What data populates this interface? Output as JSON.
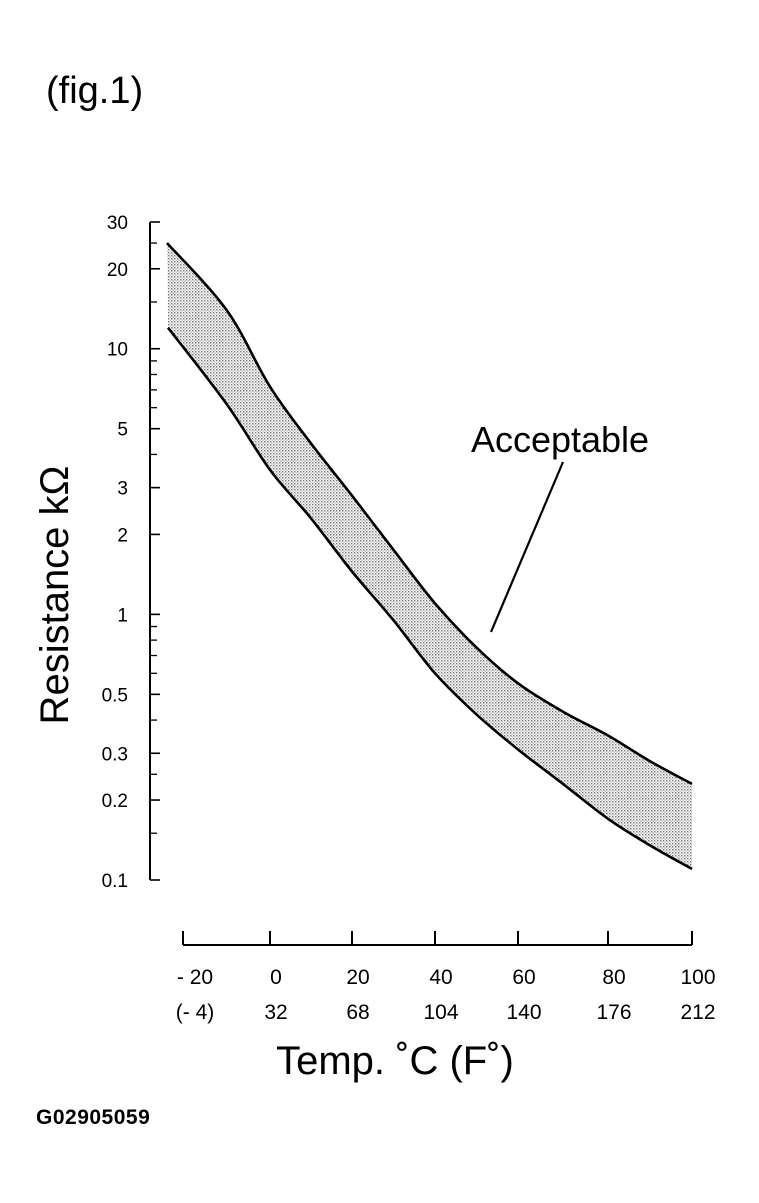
{
  "figure_label": "(fig.1)",
  "image_code": "G02905059",
  "chart_data": {
    "type": "area",
    "title": "",
    "ylabel": "Resistance kΩ",
    "xlabel": "Temp. ˚C (F˚)",
    "yscale": "log",
    "ylim": [
      0.1,
      30
    ],
    "xlim": [
      -20,
      100
    ],
    "y_tick_labels": [
      "30",
      "20",
      "10",
      "5",
      "3",
      "2",
      "1",
      "0.5",
      "0.3",
      "0.2",
      "0.1"
    ],
    "y_tick_values": [
      30,
      20,
      10,
      5,
      3,
      2,
      1,
      0.5,
      0.3,
      0.2,
      0.1
    ],
    "y_minor_ticks": [
      25,
      15,
      9,
      8,
      7,
      6,
      4,
      0.9,
      0.8,
      0.7,
      0.6,
      0.4,
      0.25,
      0.15
    ],
    "x_ticks": [
      {
        "value": -20,
        "c": "- 20",
        "f": "(- 4)"
      },
      {
        "value": 0,
        "c": "0",
        "f": "32"
      },
      {
        "value": 20,
        "c": "20",
        "f": "68"
      },
      {
        "value": 40,
        "c": "40",
        "f": "104"
      },
      {
        "value": 60,
        "c": "60",
        "f": "140"
      },
      {
        "value": 80,
        "c": "80",
        "f": "176"
      },
      {
        "value": 100,
        "c": "100",
        "f": "212"
      }
    ],
    "series": [
      {
        "x": [
          -20,
          -10,
          0,
          10,
          20,
          30,
          40,
          50,
          60,
          70,
          80,
          90,
          100
        ],
        "y": [
          25,
          14,
          7.2,
          4.4,
          2.8,
          1.75,
          1.1,
          0.75,
          0.55,
          0.43,
          0.35,
          0.28,
          0.23
        ]
      },
      {
        "x": [
          -20,
          -10,
          0,
          10,
          20,
          30,
          40,
          50,
          60,
          70,
          80,
          90,
          100
        ],
        "y": [
          12,
          6.2,
          3.5,
          2.3,
          1.45,
          0.95,
          0.6,
          0.42,
          0.31,
          0.23,
          0.17,
          0.135,
          0.11
        ]
      }
    ],
    "band": {
      "label": "Acceptable",
      "fill": "#d0d0d0"
    }
  }
}
